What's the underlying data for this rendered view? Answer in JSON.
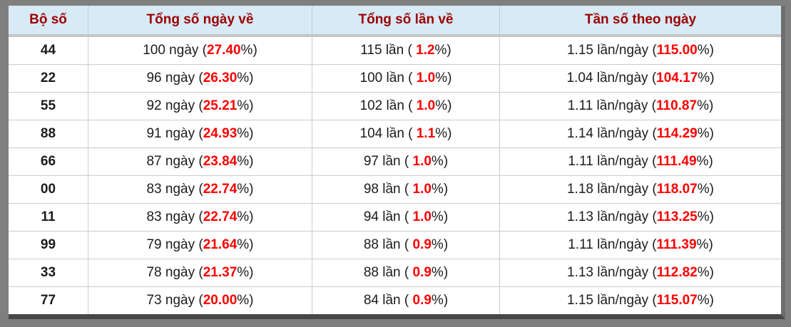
{
  "page": {
    "background": "#7f7f7f",
    "header_bg": "#d8eaf6",
    "header_text_color": "#9b0000",
    "highlight_color": "#ff0000",
    "body_text_color": "#1c1c1c",
    "grid_color": "#cccccc"
  },
  "table": {
    "headers": [
      "Bộ số",
      "Tổng số ngày về",
      "Tổng số lần về",
      "Tần số theo ngày"
    ],
    "rows": [
      {
        "pair": "44",
        "days": "100 ngày (",
        "days_pct": "27.40",
        "days_end": "%)",
        "times": "115 lần ( ",
        "times_pct": "1.2",
        "times_end": "%)",
        "freq": "1.15 lần/ngày (",
        "freq_pct": "115.00",
        "freq_end": "%)"
      },
      {
        "pair": "22",
        "days": "96 ngày (",
        "days_pct": "26.30",
        "days_end": "%)",
        "times": "100 lần ( ",
        "times_pct": "1.0",
        "times_end": "%)",
        "freq": "1.04 lần/ngày (",
        "freq_pct": "104.17",
        "freq_end": "%)"
      },
      {
        "pair": "55",
        "days": "92 ngày (",
        "days_pct": "25.21",
        "days_end": "%)",
        "times": "102 lần ( ",
        "times_pct": "1.0",
        "times_end": "%)",
        "freq": "1.11 lần/ngày (",
        "freq_pct": "110.87",
        "freq_end": "%)"
      },
      {
        "pair": "88",
        "days": "91 ngày (",
        "days_pct": "24.93",
        "days_end": "%)",
        "times": "104 lần ( ",
        "times_pct": "1.1",
        "times_end": "%)",
        "freq": "1.14 lần/ngày (",
        "freq_pct": "114.29",
        "freq_end": "%)"
      },
      {
        "pair": "66",
        "days": "87 ngày (",
        "days_pct": "23.84",
        "days_end": "%)",
        "times": "97 lần ( ",
        "times_pct": "1.0",
        "times_end": "%)",
        "freq": "1.11 lần/ngày (",
        "freq_pct": "111.49",
        "freq_end": "%)"
      },
      {
        "pair": "00",
        "days": "83 ngày (",
        "days_pct": "22.74",
        "days_end": "%)",
        "times": "98 lần ( ",
        "times_pct": "1.0",
        "times_end": "%)",
        "freq": "1.18 lần/ngày (",
        "freq_pct": "118.07",
        "freq_end": "%)"
      },
      {
        "pair": "11",
        "days": "83 ngày (",
        "days_pct": "22.74",
        "days_end": "%)",
        "times": "94 lần ( ",
        "times_pct": "1.0",
        "times_end": "%)",
        "freq": "1.13 lần/ngày (",
        "freq_pct": "113.25",
        "freq_end": "%)"
      },
      {
        "pair": "99",
        "days": "79 ngày (",
        "days_pct": "21.64",
        "days_end": "%)",
        "times": "88 lần ( ",
        "times_pct": "0.9",
        "times_end": "%)",
        "freq": "1.11 lần/ngày (",
        "freq_pct": "111.39",
        "freq_end": "%)"
      },
      {
        "pair": "33",
        "days": "78 ngày (",
        "days_pct": "21.37",
        "days_end": "%)",
        "times": "88 lần ( ",
        "times_pct": "0.9",
        "times_end": "%)",
        "freq": "1.13 lần/ngày (",
        "freq_pct": "112.82",
        "freq_end": "%)"
      },
      {
        "pair": "77",
        "days": "73 ngày (",
        "days_pct": "20.00",
        "days_end": "%)",
        "times": "84 lần ( ",
        "times_pct": "0.9",
        "times_end": "%)",
        "freq": "1.15 lần/ngày (",
        "freq_pct": "115.07",
        "freq_end": "%)"
      }
    ]
  }
}
